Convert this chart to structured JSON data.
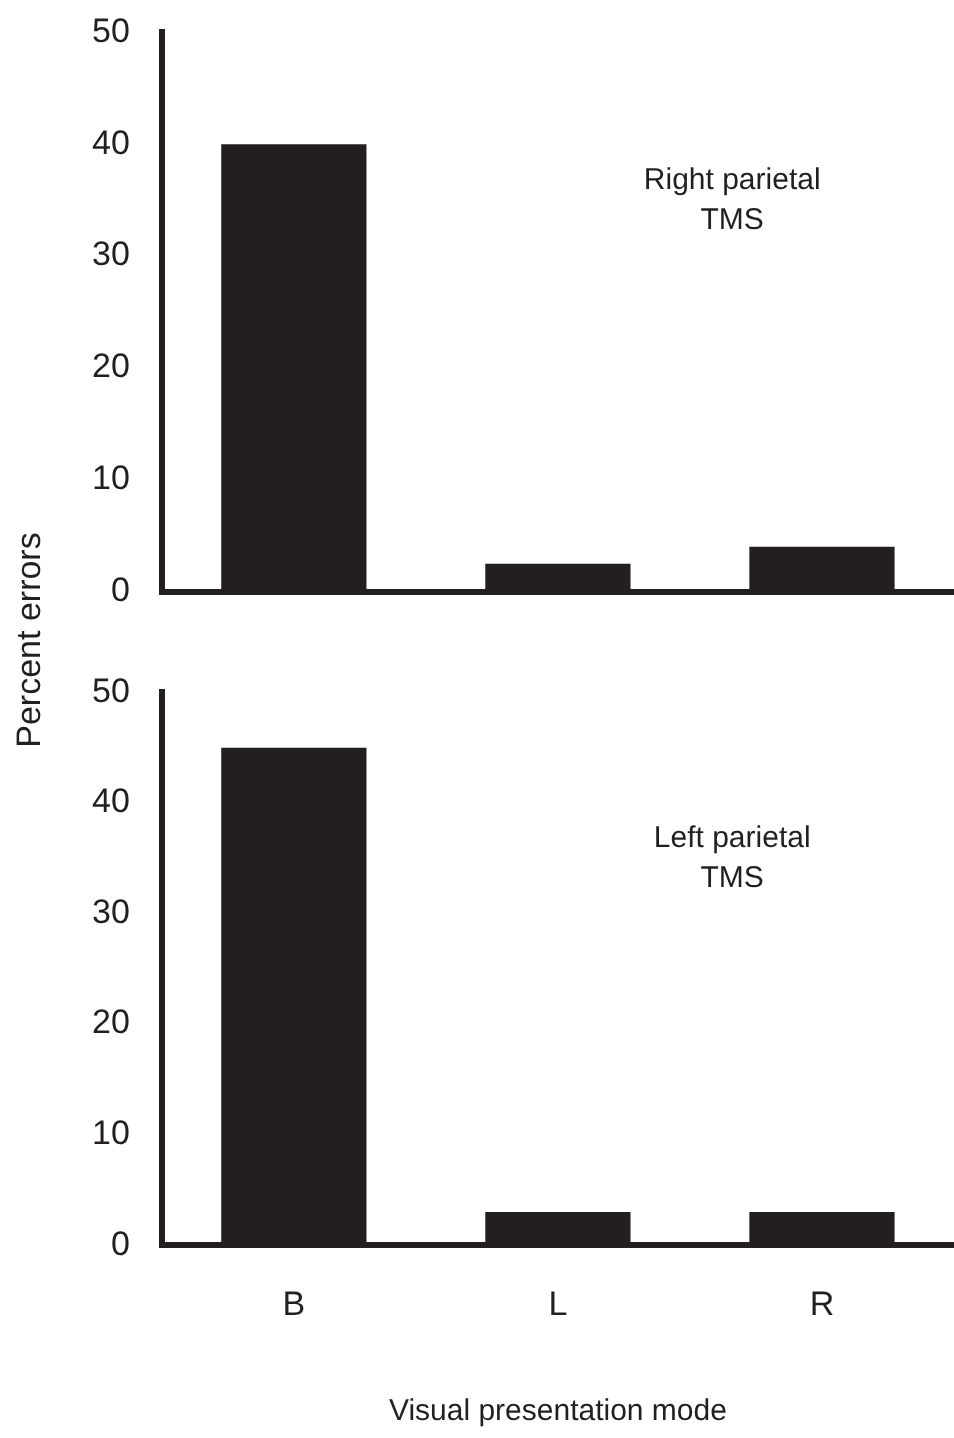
{
  "chart_data": [
    {
      "type": "bar",
      "categories": [
        null,
        null,
        null
      ],
      "values": [
        40,
        2.5,
        4
      ],
      "color": "#231f20",
      "ylim": [
        0,
        50
      ],
      "yticks": [
        0,
        10,
        20,
        30,
        40,
        50
      ],
      "ylabel": "Percent errors",
      "grid": false,
      "legend": false,
      "tick_labels": "y",
      "annotations": [
        "Right parietal\nTMS"
      ]
    },
    {
      "type": "bar",
      "categories": [
        "B",
        "L",
        "R"
      ],
      "values": [
        45,
        3,
        3
      ],
      "color": "#231f20",
      "ylim": [
        0,
        50
      ],
      "yticks": [
        0,
        10,
        20,
        30,
        40,
        50
      ],
      "xlabel": "Visual presentation mode",
      "grid": false,
      "legend": false,
      "annotations": [
        "Left parietal\nTMS"
      ]
    }
  ]
}
